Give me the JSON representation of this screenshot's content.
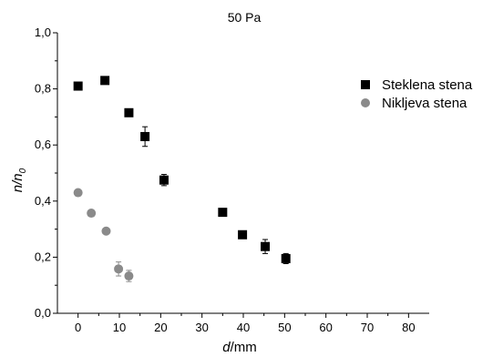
{
  "chart_data": {
    "type": "scatter",
    "title": "50 Pa",
    "xlabel_italic": "d",
    "xlabel_rest": "/mm",
    "ylabel_main": "n/n",
    "ylabel_sub": "0",
    "xlim": [
      -5,
      85
    ],
    "ylim": [
      0,
      1.0
    ],
    "xticks": [
      0,
      10,
      20,
      30,
      40,
      50,
      60,
      70,
      80
    ],
    "yticks": [
      0.0,
      0.2,
      0.4,
      0.6,
      0.8,
      1.0
    ],
    "ytick_labels": [
      "0,0",
      "0,2",
      "0,4",
      "0,6",
      "0,8",
      "1,0"
    ],
    "grid": false,
    "legend_position": "top-right",
    "series": [
      {
        "name": "Steklena stena",
        "marker": "square",
        "color": "#000000",
        "points": [
          {
            "x": 0,
            "y": 0.81,
            "err": 0.0
          },
          {
            "x": 6.5,
            "y": 0.83,
            "err": 0.0
          },
          {
            "x": 12.3,
            "y": 0.715,
            "err": 0.012
          },
          {
            "x": 16.2,
            "y": 0.63,
            "err": 0.035
          },
          {
            "x": 20.8,
            "y": 0.475,
            "err": 0.02
          },
          {
            "x": 35,
            "y": 0.36,
            "err": 0.0
          },
          {
            "x": 39.8,
            "y": 0.28,
            "err": 0.0
          },
          {
            "x": 45.3,
            "y": 0.238,
            "err": 0.025
          },
          {
            "x": 50.3,
            "y": 0.195,
            "err": 0.018
          }
        ]
      },
      {
        "name": "Nikljeva stena",
        "marker": "circle",
        "color": "#8a8a8a",
        "points": [
          {
            "x": 0,
            "y": 0.43,
            "err": 0.0
          },
          {
            "x": 3.2,
            "y": 0.357,
            "err": 0.008
          },
          {
            "x": 6.8,
            "y": 0.293,
            "err": 0.006
          },
          {
            "x": 9.8,
            "y": 0.158,
            "err": 0.025
          },
          {
            "x": 12.3,
            "y": 0.133,
            "err": 0.02
          }
        ]
      }
    ]
  }
}
